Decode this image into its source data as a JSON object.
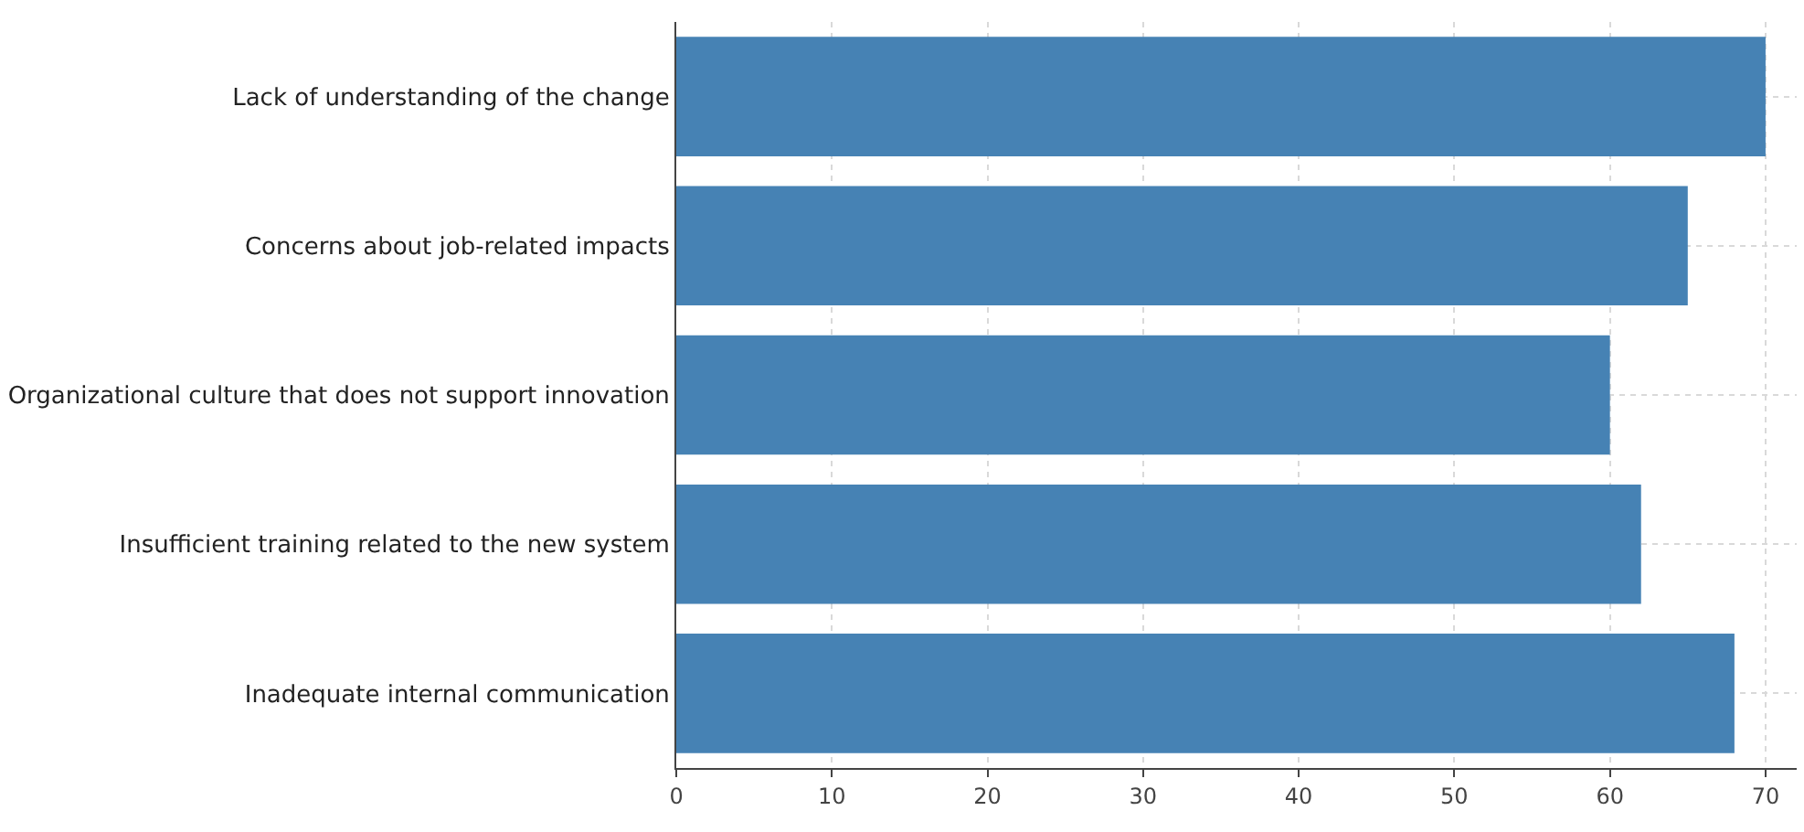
{
  "chart_data": {
    "type": "bar",
    "orientation": "horizontal",
    "categories": [
      "Lack of understanding of the change",
      "Concerns about job-related impacts",
      "Organizational culture that does not support innovation",
      "Insufficient training related to the new system",
      "Inadequate internal communication"
    ],
    "values": [
      70,
      65,
      60,
      62,
      68
    ],
    "color": "#4682b4",
    "xlim": [
      0,
      72
    ],
    "xticks": [
      0,
      10,
      20,
      30,
      40,
      50,
      60,
      70
    ],
    "grid": true
  }
}
